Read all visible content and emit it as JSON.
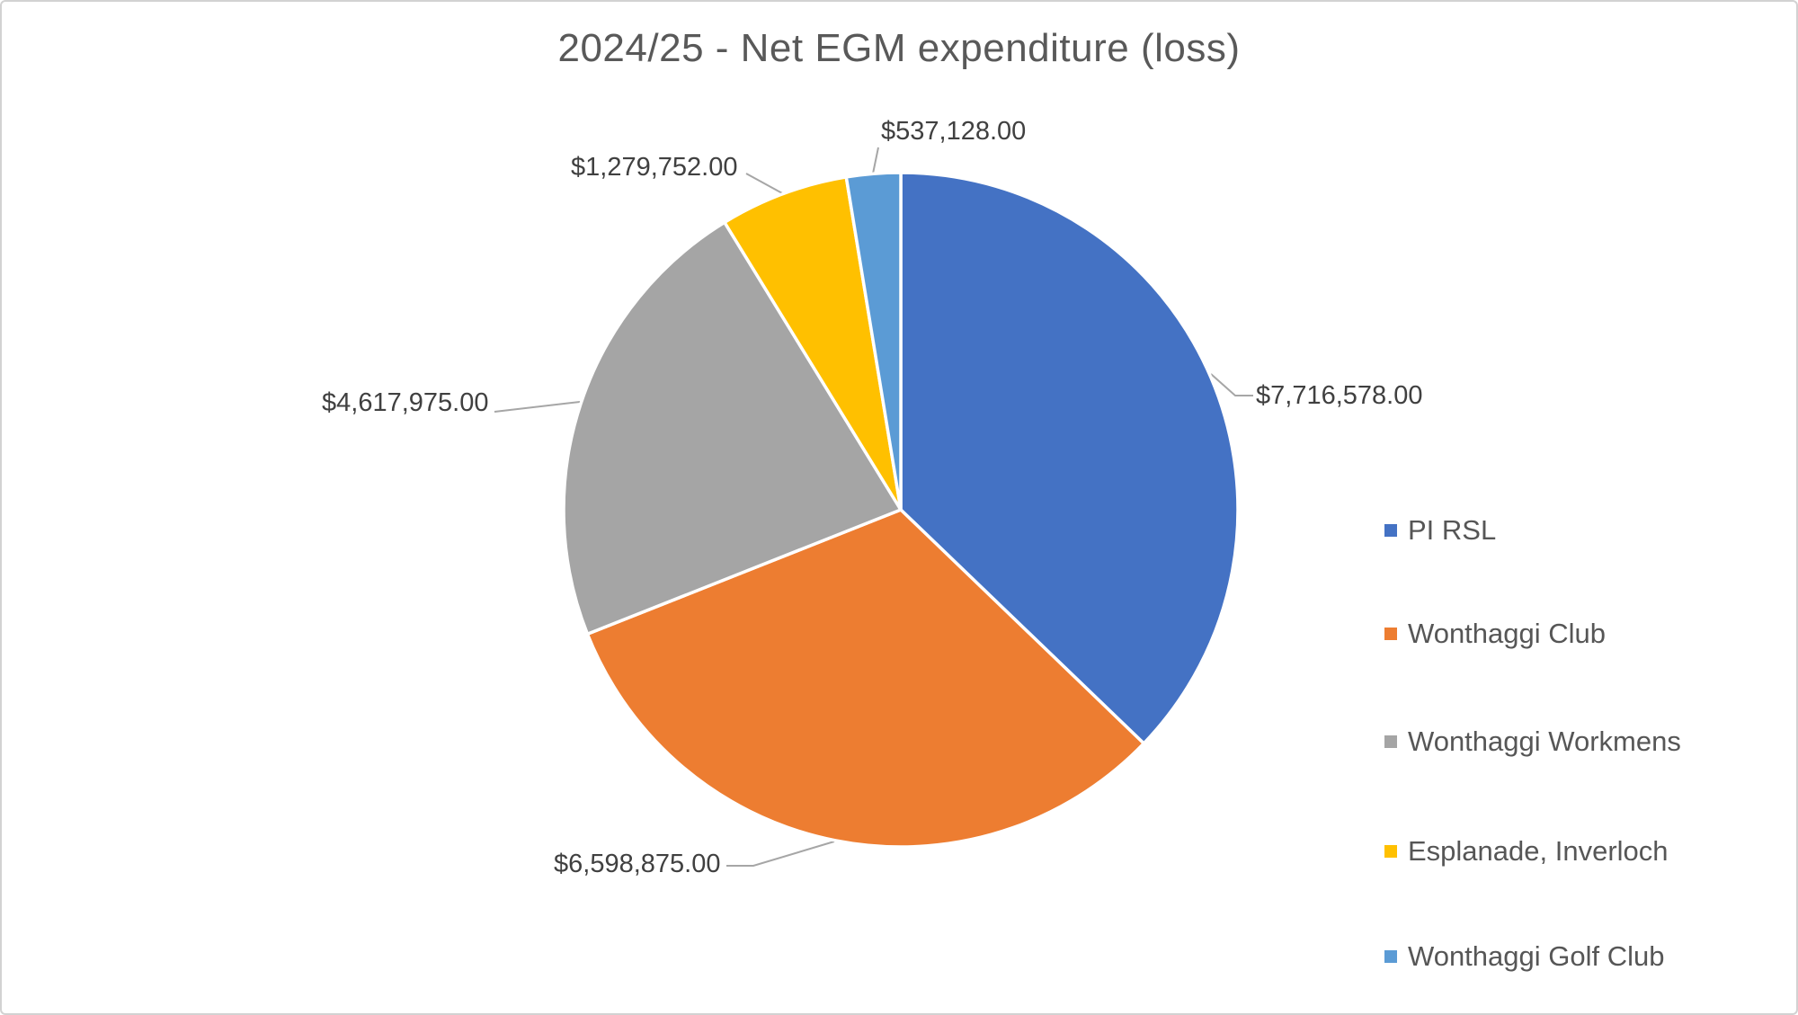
{
  "chart_data": {
    "type": "pie",
    "title": "2024/25 - Net EGM expenditure (loss)",
    "slices": [
      {
        "name": "PI RSL",
        "value": 7716578,
        "label": "$7,716,578.00",
        "color": "#4472C4"
      },
      {
        "name": "Wonthaggi Club",
        "value": 6598875,
        "label": "$6,598,875.00",
        "color": "#ED7D31"
      },
      {
        "name": "Wonthaggi Workmens",
        "value": 4617975,
        "label": "$4,617,975.00",
        "color": "#A5A5A5"
      },
      {
        "name": "Esplanade, Inverloch",
        "value": 1279752,
        "label": "$1,279,752.00",
        "color": "#FFC000"
      },
      {
        "name": "Wonthaggi Golf Club",
        "value": 537128,
        "label": "$537,128.00",
        "color": "#5B9BD5"
      }
    ],
    "start_angle_deg": 0,
    "direction": "clockwise",
    "legend_position": "right",
    "data_labels": "outside-end-with-leader-lines",
    "grid": "off"
  },
  "styles": {
    "title_color": "#595959",
    "label_color": "#404040",
    "legend_color": "#565656",
    "leader_line_color": "#a6a6a6",
    "slice_border_color": "#ffffff",
    "canvas_border_color": "#d2d2d2"
  }
}
